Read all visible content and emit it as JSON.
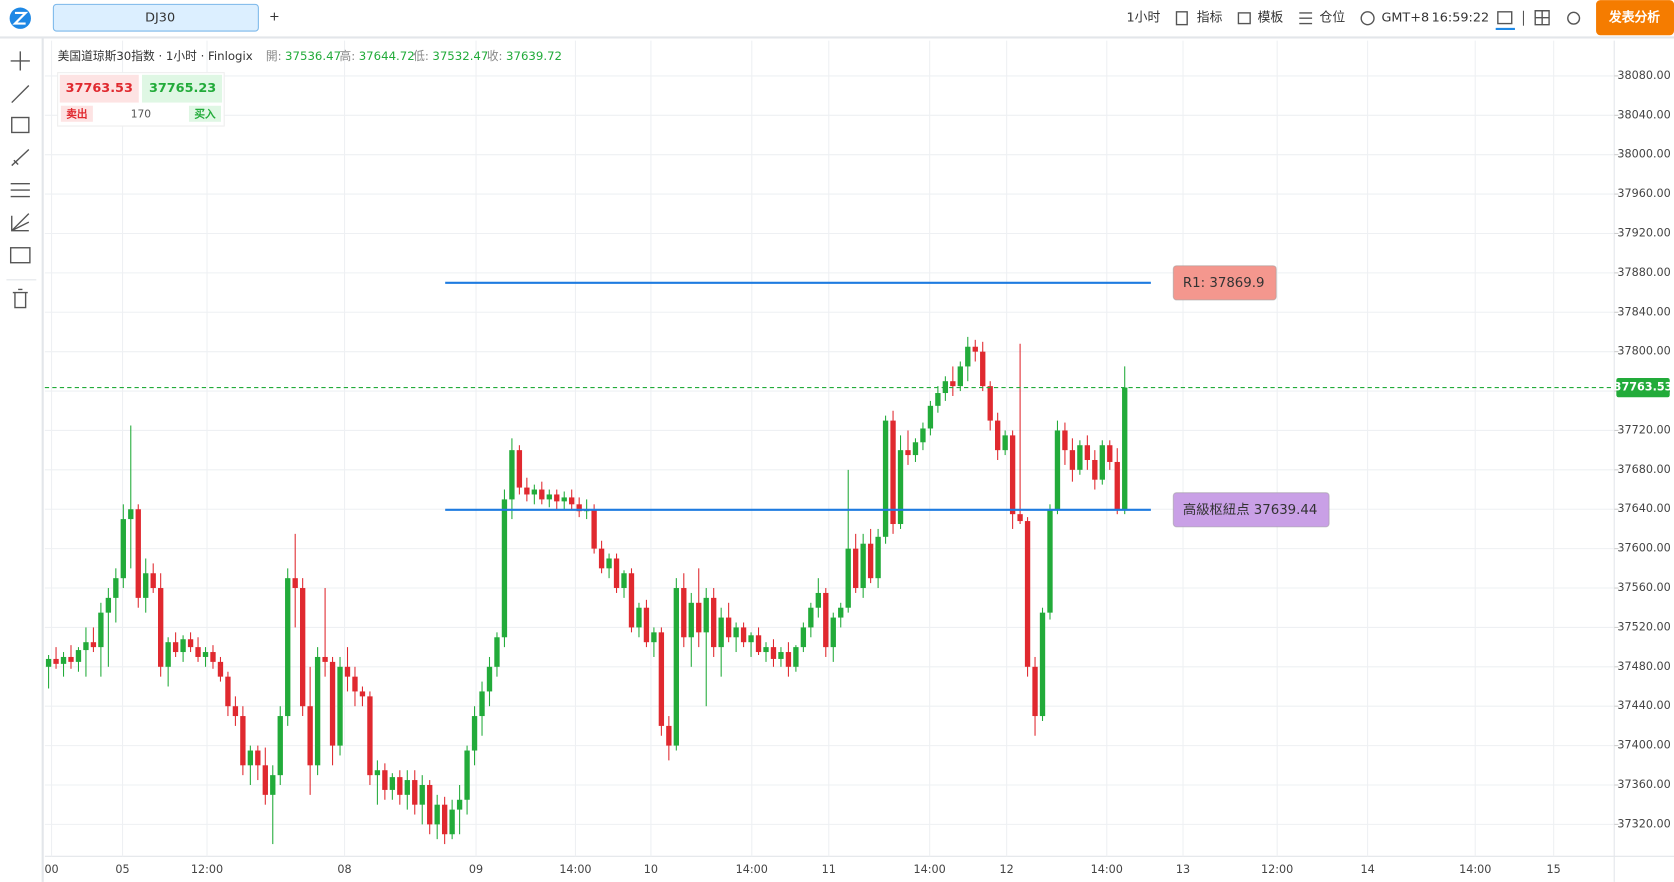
{
  "toolbar": {
    "tab": "DJ30",
    "add": "+",
    "interval": "1小时",
    "indicators": "指标",
    "templates": "模板",
    "positions": "仓位",
    "timezone": "GMT+8",
    "clock": "16:59:22",
    "publish": "发表分析"
  },
  "header": {
    "title": "美国道琼斯30指数 · 1小时 · Finlogix",
    "open_label": "開:",
    "open": 37536.47,
    "high_label": "高:",
    "high": 37644.72,
    "low_label": "低:",
    "low": 37532.47,
    "close_label": "收:",
    "close": 37639.72
  },
  "trade_panel": {
    "sell_price": 37763.53,
    "buy_price": 37765.23,
    "sell": "卖出",
    "quantity": 170,
    "buy": "买入"
  },
  "chart_data": {
    "type": "candlestick",
    "up_color": "#22ab3a",
    "down_color": "#e0292f",
    "grid": true,
    "ylim": [
      37287.6,
      38115.8
    ],
    "yticks": [
      {
        "value": 37320,
        "label": "37320.00"
      },
      {
        "value": 37360,
        "label": "37360.00"
      },
      {
        "value": 37400,
        "label": "37400.00"
      },
      {
        "value": 37440,
        "label": "37440.00"
      },
      {
        "value": 37480,
        "label": "37480.00"
      },
      {
        "value": 37520,
        "label": "37520.00"
      },
      {
        "value": 37560,
        "label": "37560.00"
      },
      {
        "value": 37600,
        "label": "37600.00"
      },
      {
        "value": 37640,
        "label": "37640.00"
      },
      {
        "value": 37680,
        "label": "37680.00"
      },
      {
        "value": 37720,
        "label": "37720.00"
      },
      {
        "value": 37760,
        "label": "37760.00"
      },
      {
        "value": 37800,
        "label": "37800.00"
      },
      {
        "value": 37840,
        "label": "37840.00"
      },
      {
        "value": 37880,
        "label": "37880.00"
      },
      {
        "value": 37920,
        "label": "37920.00"
      },
      {
        "value": 37960,
        "label": "37960.00"
      },
      {
        "value": 38000,
        "label": "38000.00"
      },
      {
        "value": 38040,
        "label": "38040.00"
      },
      {
        "value": 38080,
        "label": "38080.00"
      }
    ],
    "xlim": [
      -0.5,
      209.5
    ],
    "xticks": [
      {
        "value": 0.4,
        "label": "00"
      },
      {
        "value": 9.9,
        "label": "05"
      },
      {
        "value": 21.2,
        "label": "12:00"
      },
      {
        "value": 39.6,
        "label": "08"
      },
      {
        "value": 57.2,
        "label": "09"
      },
      {
        "value": 70.5,
        "label": "14:00"
      },
      {
        "value": 80.6,
        "label": "10"
      },
      {
        "value": 94.1,
        "label": "14:00"
      },
      {
        "value": 104.4,
        "label": "11"
      },
      {
        "value": 117.9,
        "label": "14:00"
      },
      {
        "value": 128.2,
        "label": "12"
      },
      {
        "value": 141.6,
        "label": "14:00"
      },
      {
        "value": 151.8,
        "label": "13"
      },
      {
        "value": 164.4,
        "label": "12:00"
      },
      {
        "value": 176.5,
        "label": "14"
      },
      {
        "value": 190.9,
        "label": "14:00"
      },
      {
        "value": 201.4,
        "label": "15"
      }
    ],
    "last_price": 37763.53,
    "levels": [
      {
        "label": "R1: 37869.9",
        "value": 37869.9,
        "color": "#1e7be0",
        "label_color": "#f4978e"
      },
      {
        "label": "高級枢紐点 37639.44",
        "value": 37639.44,
        "color": "#1e7be0",
        "label_color": "#c9a0e6"
      }
    ],
    "ohlc": [
      [
        37480,
        37492,
        37458,
        37488
      ],
      [
        37488,
        37500,
        37478,
        37483
      ],
      [
        37483,
        37495,
        37470,
        37490
      ],
      [
        37490,
        37502,
        37478,
        37485
      ],
      [
        37485,
        37500,
        37475,
        37497
      ],
      [
        37497,
        37520,
        37470,
        37505
      ],
      [
        37505,
        37520,
        37495,
        37500
      ],
      [
        37500,
        37545,
        37470,
        37535
      ],
      [
        37535,
        37560,
        37480,
        37550
      ],
      [
        37550,
        37580,
        37525,
        37570
      ],
      [
        37570,
        37645,
        37560,
        37630
      ],
      [
        37630,
        37725,
        37580,
        37640
      ],
      [
        37640,
        37645,
        37540,
        37550
      ],
      [
        37550,
        37590,
        37535,
        37575
      ],
      [
        37575,
        37585,
        37555,
        37560
      ],
      [
        37560,
        37575,
        37470,
        37480
      ],
      [
        37480,
        37510,
        37460,
        37505
      ],
      [
        37505,
        37515,
        37490,
        37495
      ],
      [
        37495,
        37512,
        37485,
        37508
      ],
      [
        37508,
        37515,
        37495,
        37500
      ],
      [
        37500,
        37510,
        37485,
        37490
      ],
      [
        37490,
        37500,
        37480,
        37495
      ],
      [
        37495,
        37502,
        37478,
        37485
      ],
      [
        37485,
        37490,
        37465,
        37470
      ],
      [
        37470,
        37475,
        37430,
        37440
      ],
      [
        37440,
        37450,
        37420,
        37430
      ],
      [
        37430,
        37440,
        37370,
        37380
      ],
      [
        37380,
        37400,
        37360,
        37395
      ],
      [
        37395,
        37400,
        37365,
        37380
      ],
      [
        37380,
        37398,
        37340,
        37350
      ],
      [
        37350,
        37380,
        37300,
        37370
      ],
      [
        37370,
        37440,
        37360,
        37430
      ],
      [
        37430,
        37580,
        37420,
        37570
      ],
      [
        37570,
        37615,
        37520,
        37560
      ],
      [
        37560,
        37570,
        37430,
        37440
      ],
      [
        37440,
        37480,
        37350,
        37380
      ],
      [
        37380,
        37500,
        37370,
        37490
      ],
      [
        37490,
        37560,
        37470,
        37485
      ],
      [
        37485,
        37490,
        37380,
        37400
      ],
      [
        37400,
        37490,
        37390,
        37480
      ],
      [
        37480,
        37500,
        37455,
        37470
      ],
      [
        37470,
        37480,
        37440,
        37455
      ],
      [
        37455,
        37460,
        37440,
        37450
      ],
      [
        37450,
        37455,
        37360,
        37370
      ],
      [
        37370,
        37385,
        37340,
        37375
      ],
      [
        37375,
        37382,
        37345,
        37355
      ],
      [
        37355,
        37372,
        37345,
        37368
      ],
      [
        37368,
        37375,
        37340,
        37350
      ],
      [
        37350,
        37375,
        37335,
        37365
      ],
      [
        37365,
        37375,
        37330,
        37340
      ],
      [
        37340,
        37370,
        37320,
        37360
      ],
      [
        37360,
        37365,
        37310,
        37320
      ],
      [
        37320,
        37350,
        37305,
        37340
      ],
      [
        37340,
        37348,
        37300,
        37310
      ],
      [
        37310,
        37345,
        37305,
        37335
      ],
      [
        37335,
        37360,
        37310,
        37345
      ],
      [
        37345,
        37400,
        37330,
        37395
      ],
      [
        37395,
        37440,
        37380,
        37430
      ],
      [
        37430,
        37465,
        37410,
        37455
      ],
      [
        37455,
        37490,
        37440,
        37480
      ],
      [
        37480,
        37515,
        37470,
        37510
      ],
      [
        37510,
        37660,
        37500,
        37650
      ],
      [
        37650,
        37712,
        37630,
        37700
      ],
      [
        37700,
        37705,
        37655,
        37662
      ],
      [
        37662,
        37672,
        37648,
        37655
      ],
      [
        37655,
        37665,
        37645,
        37660
      ],
      [
        37660,
        37668,
        37645,
        37650
      ],
      [
        37650,
        37660,
        37642,
        37655
      ],
      [
        37655,
        37660,
        37640,
        37648
      ],
      [
        37648,
        37658,
        37640,
        37652
      ],
      [
        37652,
        37660,
        37640,
        37645
      ],
      [
        37645,
        37652,
        37632,
        37638
      ],
      [
        37638,
        37650,
        37630,
        37640
      ],
      [
        37640,
        37645,
        37595,
        37600
      ],
      [
        37600,
        37608,
        37575,
        37580
      ],
      [
        37580,
        37595,
        37570,
        37590
      ],
      [
        37590,
        37595,
        37555,
        37560
      ],
      [
        37560,
        37578,
        37550,
        37575
      ],
      [
        37575,
        37580,
        37515,
        37520
      ],
      [
        37520,
        37545,
        37510,
        37540
      ],
      [
        37540,
        37548,
        37500,
        37505
      ],
      [
        37505,
        37520,
        37490,
        37515
      ],
      [
        37515,
        37520,
        37410,
        37420
      ],
      [
        37420,
        37430,
        37385,
        37400
      ],
      [
        37400,
        37570,
        37395,
        37560
      ],
      [
        37560,
        37575,
        37500,
        37510
      ],
      [
        37510,
        37555,
        37480,
        37545
      ],
      [
        37545,
        37580,
        37500,
        37515
      ],
      [
        37515,
        37560,
        37440,
        37550
      ],
      [
        37550,
        37560,
        37490,
        37500
      ],
      [
        37500,
        37540,
        37470,
        37530
      ],
      [
        37530,
        37545,
        37505,
        37510
      ],
      [
        37510,
        37525,
        37495,
        37520
      ],
      [
        37520,
        37525,
        37500,
        37505
      ],
      [
        37505,
        37515,
        37490,
        37512
      ],
      [
        37512,
        37520,
        37492,
        37495
      ],
      [
        37495,
        37505,
        37485,
        37500
      ],
      [
        37500,
        37508,
        37480,
        37488
      ],
      [
        37488,
        37500,
        37480,
        37495
      ],
      [
        37495,
        37505,
        37470,
        37480
      ],
      [
        37480,
        37502,
        37475,
        37500
      ],
      [
        37500,
        37525,
        37495,
        37520
      ],
      [
        37520,
        37545,
        37510,
        37540
      ],
      [
        37540,
        37570,
        37530,
        37555
      ],
      [
        37555,
        37560,
        37490,
        37500
      ],
      [
        37500,
        37535,
        37485,
        37530
      ],
      [
        37530,
        37545,
        37520,
        37540
      ],
      [
        37540,
        37680,
        37535,
        37600
      ],
      [
        37600,
        37615,
        37555,
        37560
      ],
      [
        37560,
        37615,
        37550,
        37605
      ],
      [
        37605,
        37620,
        37565,
        37570
      ],
      [
        37570,
        37620,
        37560,
        37612
      ],
      [
        37612,
        37735,
        37605,
        37730
      ],
      [
        37730,
        37740,
        37615,
        37625
      ],
      [
        37625,
        37715,
        37620,
        37700
      ],
      [
        37700,
        37720,
        37685,
        37695
      ],
      [
        37695,
        37712,
        37688,
        37708
      ],
      [
        37708,
        37728,
        37700,
        37722
      ],
      [
        37722,
        37750,
        37715,
        37745
      ],
      [
        37745,
        37765,
        37738,
        37758
      ],
      [
        37758,
        37775,
        37750,
        37770
      ],
      [
        37770,
        37785,
        37755,
        37765
      ],
      [
        37765,
        37790,
        37760,
        37785
      ],
      [
        37785,
        37815,
        37770,
        37805
      ],
      [
        37805,
        37812,
        37790,
        37800
      ],
      [
        37800,
        37810,
        37760,
        37765
      ],
      [
        37765,
        37770,
        37720,
        37730
      ],
      [
        37730,
        37738,
        37690,
        37700
      ],
      [
        37700,
        37720,
        37695,
        37715
      ],
      [
        37715,
        37720,
        37620,
        37635
      ],
      [
        37635,
        37808,
        37625,
        37628
      ],
      [
        37628,
        37632,
        37470,
        37480
      ],
      [
        37480,
        37490,
        37410,
        37430
      ],
      [
        37430,
        37540,
        37425,
        37535
      ],
      [
        37535,
        37645,
        37528,
        37640
      ],
      [
        37640,
        37730,
        37635,
        37720
      ],
      [
        37720,
        37728,
        37685,
        37700
      ],
      [
        37700,
        37712,
        37668,
        37680
      ],
      [
        37680,
        37710,
        37675,
        37705
      ],
      [
        37705,
        37715,
        37680,
        37690
      ],
      [
        37690,
        37700,
        37660,
        37670
      ],
      [
        37670,
        37710,
        37665,
        37705
      ],
      [
        37705,
        37710,
        37680,
        37688
      ],
      [
        37688,
        37702,
        37635,
        37640
      ],
      [
        37640,
        37785,
        37635,
        37763.53
      ]
    ]
  }
}
